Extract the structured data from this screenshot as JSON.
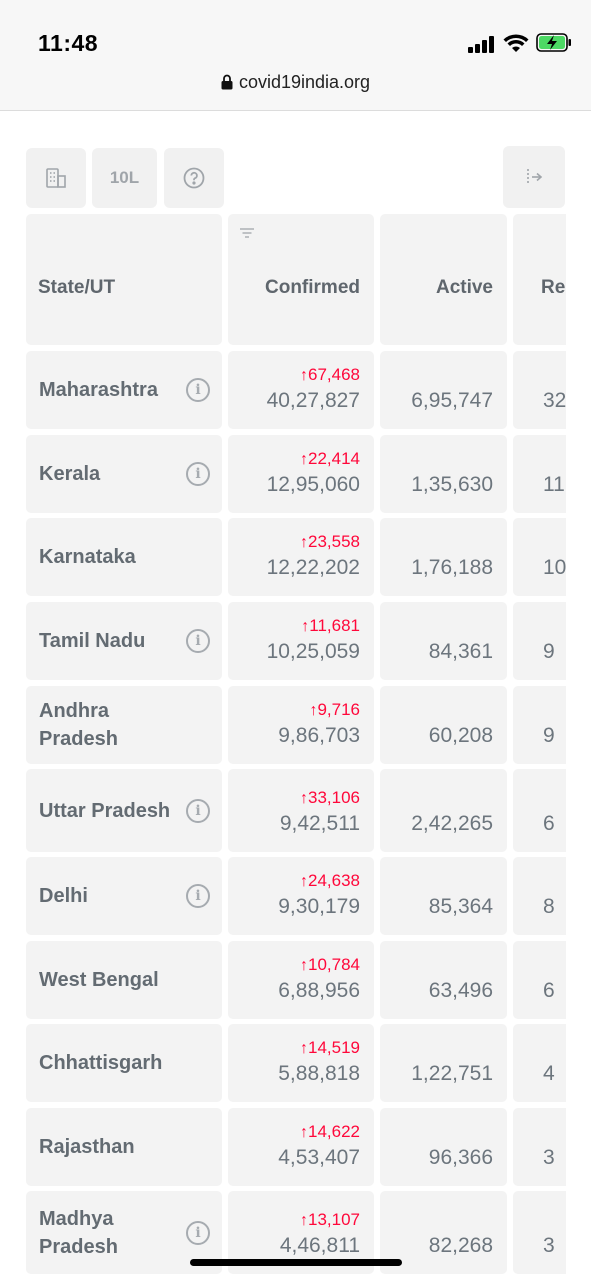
{
  "status_bar": {
    "time": "11:48"
  },
  "browser": {
    "url": "covid19india.org"
  },
  "toolbar": {
    "per_million_label": "10L"
  },
  "table": {
    "headers": {
      "state": "State/UT",
      "confirmed": "Confirmed",
      "active": "Active",
      "recovered": "Re"
    },
    "rows": [
      {
        "state": "Maharashtra",
        "info": true,
        "delta": "67,468",
        "confirmed": "40,27,827",
        "active": "6,95,747",
        "recovered": "32"
      },
      {
        "state": "Kerala",
        "info": true,
        "delta": "22,414",
        "confirmed": "12,95,060",
        "active": "1,35,630",
        "recovered": "11"
      },
      {
        "state": "Karnataka",
        "info": false,
        "delta": "23,558",
        "confirmed": "12,22,202",
        "active": "1,76,188",
        "recovered": "10"
      },
      {
        "state": "Tamil Nadu",
        "info": true,
        "delta": "11,681",
        "confirmed": "10,25,059",
        "active": "84,361",
        "recovered": "9"
      },
      {
        "state": "Andhra Pradesh",
        "info": false,
        "delta": "9,716",
        "confirmed": "9,86,703",
        "active": "60,208",
        "recovered": "9"
      },
      {
        "state": "Uttar Pradesh",
        "info": true,
        "delta": "33,106",
        "confirmed": "9,42,511",
        "active": "2,42,265",
        "recovered": "6"
      },
      {
        "state": "Delhi",
        "info": true,
        "delta": "24,638",
        "confirmed": "9,30,179",
        "active": "85,364",
        "recovered": "8"
      },
      {
        "state": "West Bengal",
        "info": false,
        "delta": "10,784",
        "confirmed": "6,88,956",
        "active": "63,496",
        "recovered": "6"
      },
      {
        "state": "Chhattisgarh",
        "info": false,
        "delta": "14,519",
        "confirmed": "5,88,818",
        "active": "1,22,751",
        "recovered": "4"
      },
      {
        "state": "Rajasthan",
        "info": false,
        "delta": "14,622",
        "confirmed": "4,53,407",
        "active": "96,366",
        "recovered": "3"
      },
      {
        "state": "Madhya Pradesh",
        "info": true,
        "delta": "13,107",
        "confirmed": "4,46,811",
        "active": "82,268",
        "recovered": "3"
      }
    ]
  },
  "colors": {
    "delta": "#ff073a",
    "cell_bg": "#f3f3f3",
    "text": "#6c757d"
  }
}
